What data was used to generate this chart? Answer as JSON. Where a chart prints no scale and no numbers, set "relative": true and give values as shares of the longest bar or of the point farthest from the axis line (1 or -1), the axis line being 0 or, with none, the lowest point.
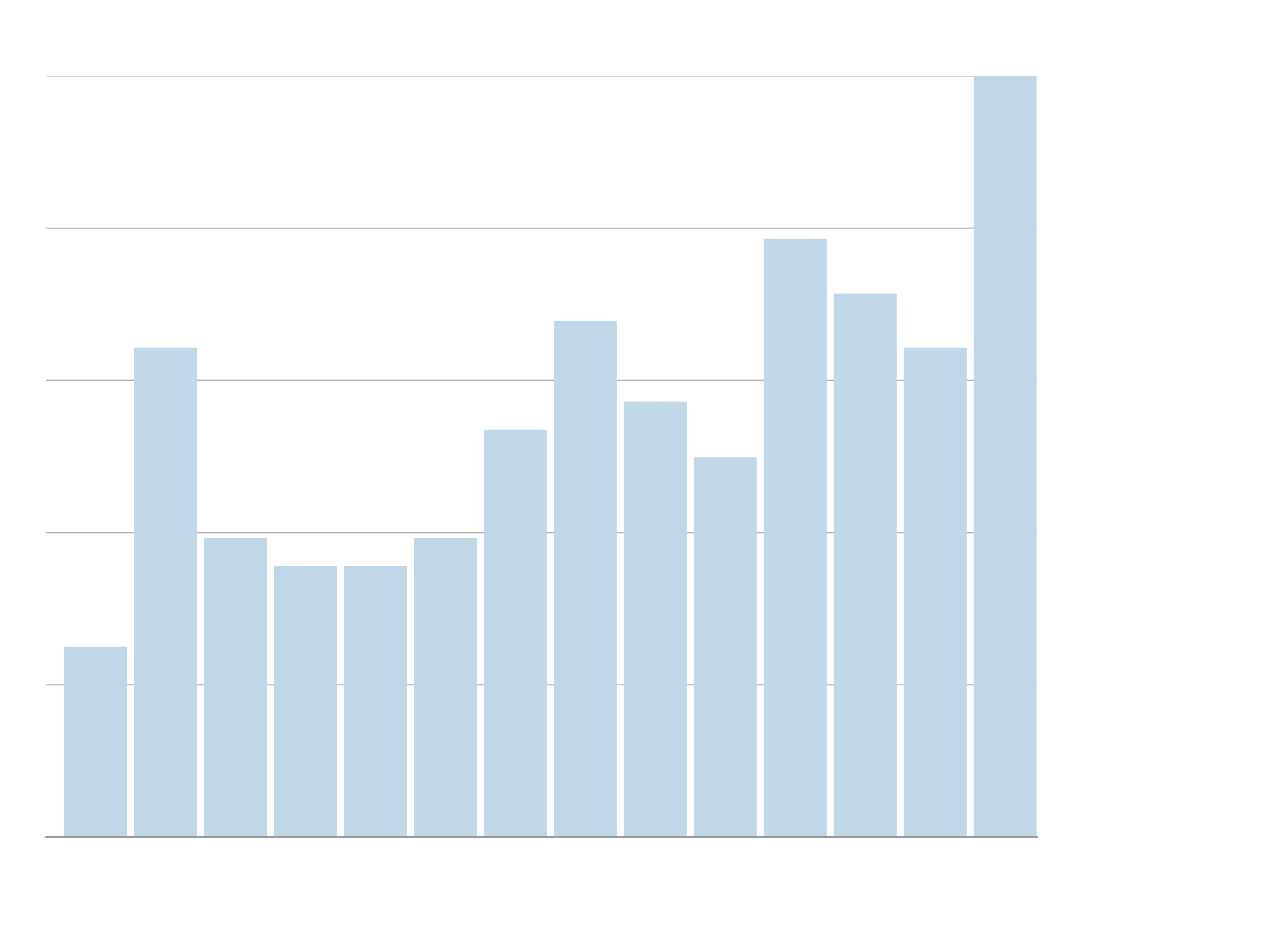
{
  "chart_data": {
    "type": "bar",
    "relative": true,
    "categories": [
      null,
      null,
      null,
      null,
      null,
      null,
      null,
      null,
      null,
      null,
      null,
      null,
      null,
      null
    ],
    "values": [
      0.25,
      0.643,
      0.393,
      0.356,
      0.356,
      0.393,
      0.535,
      0.678,
      0.572,
      0.499,
      0.786,
      0.714,
      0.643,
      1
    ],
    "color": "#bfd7e7",
    "grid": "y",
    "legend": false
  }
}
